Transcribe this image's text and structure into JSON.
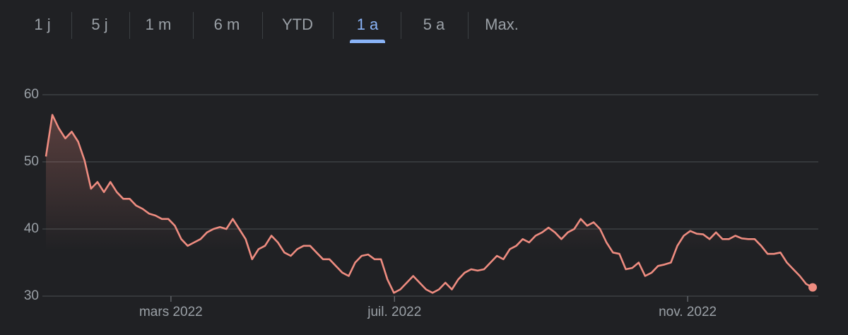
{
  "tabs": [
    {
      "label": "1 j",
      "selected": false
    },
    {
      "label": "5 j",
      "selected": false
    },
    {
      "label": "1 m",
      "selected": false
    },
    {
      "label": "6 m",
      "selected": false
    },
    {
      "label": "YTD",
      "selected": false
    },
    {
      "label": "1 a",
      "selected": true
    },
    {
      "label": "5 a",
      "selected": false
    },
    {
      "label": "Max.",
      "selected": false
    }
  ],
  "chart_data": {
    "type": "line",
    "color": "#ee8c80",
    "grid": true,
    "ylim": [
      30,
      60
    ],
    "yticks": [
      30,
      40,
      50,
      60
    ],
    "xlim": [
      0,
      119
    ],
    "xticks": [
      {
        "value": 19.4,
        "label": "mars 2022"
      },
      {
        "value": 54.1,
        "label": "juil. 2022"
      },
      {
        "value": 99.6,
        "label": "nov. 2022"
      }
    ],
    "values": [
      50.8,
      57.0,
      55,
      53.5,
      54.5,
      53,
      50.2,
      46,
      47,
      45.5,
      47,
      45.5,
      44.5,
      44.5,
      43.5,
      43,
      42.3,
      42,
      41.5,
      41.5,
      40.5,
      38.5,
      37.5,
      38,
      38.5,
      39.5,
      40,
      40.3,
      40,
      41.5,
      40,
      38.5,
      35.5,
      37,
      37.5,
      39,
      38,
      36.5,
      36,
      37,
      37.5,
      37.5,
      36.5,
      35.5,
      35.5,
      34.5,
      33.5,
      33,
      35,
      36,
      36.2,
      35.5,
      35.5,
      32.5,
      30.5,
      31,
      32,
      33,
      32,
      31,
      30.5,
      31,
      32,
      31,
      32.5,
      33.5,
      34,
      33.8,
      34,
      35,
      36,
      35.5,
      37,
      37.5,
      38.5,
      38,
      39,
      39.5,
      40.2,
      39.5,
      38.5,
      39.5,
      40,
      41.5,
      40.5,
      41,
      40,
      38,
      36.5,
      36.3,
      34,
      34.2,
      35,
      33,
      33.5,
      34.5,
      34.7,
      35,
      37.5,
      39,
      39.7,
      39.3,
      39.2,
      38.5,
      39.5,
      38.5,
      38.5,
      39,
      38.6,
      38.5,
      38.5,
      37.5,
      36.3,
      36.3,
      36.5,
      35,
      34,
      33,
      31.8,
      31.3
    ]
  }
}
